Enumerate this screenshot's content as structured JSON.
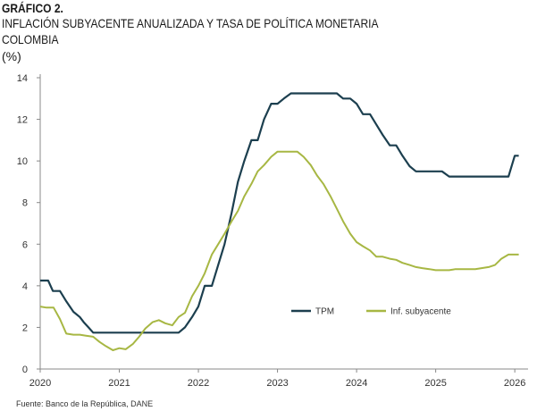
{
  "header": {
    "title": "GRÁFICO 2.",
    "subtitle_line1": "INFLACIÓN SUBYACENTE ANUALIZADA Y TASA DE POLÍTICA MONETARIA",
    "subtitle_line2": "COLOMBIA",
    "unit": "(%)"
  },
  "source": "Fuente: Banco de la República, DANE",
  "colors": {
    "tpm": "#1c3f4f",
    "core": "#a7b743",
    "axis": "#888888"
  },
  "chart_data": {
    "type": "line",
    "x_ticks": [
      "2020",
      "2021",
      "2022",
      "2023",
      "2024",
      "2025",
      "2026"
    ],
    "y_ticks": [
      "0",
      "2",
      "4",
      "6",
      "8",
      "10",
      "12",
      "14"
    ],
    "xlim": [
      2020.0,
      2026.1
    ],
    "ylim": [
      0,
      14
    ],
    "grid": false,
    "legend_position": "bottom-right",
    "series": [
      {
        "name": "TPM",
        "x": [
          2020.0,
          2020.1,
          2020.16,
          2020.25,
          2020.33,
          2020.42,
          2020.5,
          2020.55,
          2020.61,
          2020.67,
          2020.75,
          2020.83,
          2020.92,
          2021.0,
          2021.25,
          2021.5,
          2021.67,
          2021.75,
          2021.83,
          2021.92,
          2022.0,
          2022.08,
          2022.17,
          2022.25,
          2022.33,
          2022.42,
          2022.5,
          2022.58,
          2022.67,
          2022.75,
          2022.83,
          2022.92,
          2023.0,
          2023.08,
          2023.17,
          2023.25,
          2023.33,
          2023.42,
          2023.5,
          2023.58,
          2023.67,
          2023.75,
          2023.83,
          2023.92,
          2024.0,
          2024.08,
          2024.17,
          2024.25,
          2024.33,
          2024.42,
          2024.5,
          2024.58,
          2024.67,
          2024.75,
          2024.83,
          2024.92,
          2025.0,
          2025.08,
          2025.17,
          2025.25,
          2025.33,
          2025.42,
          2025.5,
          2025.58,
          2025.67,
          2025.75,
          2025.83,
          2025.92,
          2026.0,
          2026.05
        ],
        "values": [
          4.25,
          4.25,
          3.75,
          3.75,
          3.25,
          2.75,
          2.5,
          2.25,
          2.0,
          1.75,
          1.75,
          1.75,
          1.75,
          1.75,
          1.75,
          1.75,
          1.75,
          1.75,
          2.0,
          2.5,
          3.0,
          4.0,
          4.0,
          5.0,
          6.0,
          7.5,
          9.0,
          10.0,
          11.0,
          11.0,
          12.0,
          12.75,
          12.75,
          13.0,
          13.25,
          13.25,
          13.25,
          13.25,
          13.25,
          13.25,
          13.25,
          13.25,
          13.0,
          13.0,
          12.75,
          12.25,
          12.25,
          11.75,
          11.25,
          10.75,
          10.75,
          10.25,
          9.75,
          9.5,
          9.5,
          9.5,
          9.5,
          9.5,
          9.25,
          9.25,
          9.25,
          9.25,
          9.25,
          9.25,
          9.25,
          9.25,
          9.25,
          9.25,
          10.25,
          10.25
        ]
      },
      {
        "name": "Inf. subyacente",
        "x": [
          2020.0,
          2020.08,
          2020.17,
          2020.25,
          2020.33,
          2020.42,
          2020.5,
          2020.58,
          2020.67,
          2020.75,
          2020.83,
          2020.92,
          2021.0,
          2021.08,
          2021.17,
          2021.25,
          2021.33,
          2021.42,
          2021.5,
          2021.58,
          2021.67,
          2021.75,
          2021.83,
          2021.92,
          2022.0,
          2022.08,
          2022.17,
          2022.25,
          2022.33,
          2022.42,
          2022.5,
          2022.58,
          2022.67,
          2022.75,
          2022.83,
          2022.92,
          2023.0,
          2023.08,
          2023.17,
          2023.25,
          2023.33,
          2023.42,
          2023.5,
          2023.58,
          2023.67,
          2023.75,
          2023.83,
          2023.92,
          2024.0,
          2024.08,
          2024.17,
          2024.25,
          2024.33,
          2024.42,
          2024.5,
          2024.58,
          2024.67,
          2024.75,
          2024.83,
          2024.92,
          2025.0,
          2025.08,
          2025.17,
          2025.25,
          2025.33,
          2025.42,
          2025.5,
          2025.58,
          2025.67,
          2025.75,
          2025.83,
          2025.92,
          2026.0,
          2026.05
        ],
        "values": [
          3.0,
          2.95,
          2.95,
          2.4,
          1.7,
          1.65,
          1.65,
          1.6,
          1.55,
          1.3,
          1.1,
          0.9,
          1.0,
          0.95,
          1.2,
          1.55,
          1.95,
          2.25,
          2.35,
          2.2,
          2.1,
          2.5,
          2.7,
          3.5,
          4.0,
          4.6,
          5.5,
          6.0,
          6.5,
          7.1,
          7.6,
          8.3,
          8.9,
          9.5,
          9.8,
          10.2,
          10.45,
          10.45,
          10.45,
          10.45,
          10.2,
          9.8,
          9.3,
          8.9,
          8.3,
          7.7,
          7.1,
          6.5,
          6.1,
          5.9,
          5.7,
          5.4,
          5.4,
          5.3,
          5.25,
          5.1,
          5.0,
          4.9,
          4.85,
          4.8,
          4.75,
          4.75,
          4.75,
          4.8,
          4.8,
          4.8,
          4.8,
          4.85,
          4.9,
          5.0,
          5.3,
          5.5,
          5.5,
          5.5
        ]
      }
    ]
  }
}
